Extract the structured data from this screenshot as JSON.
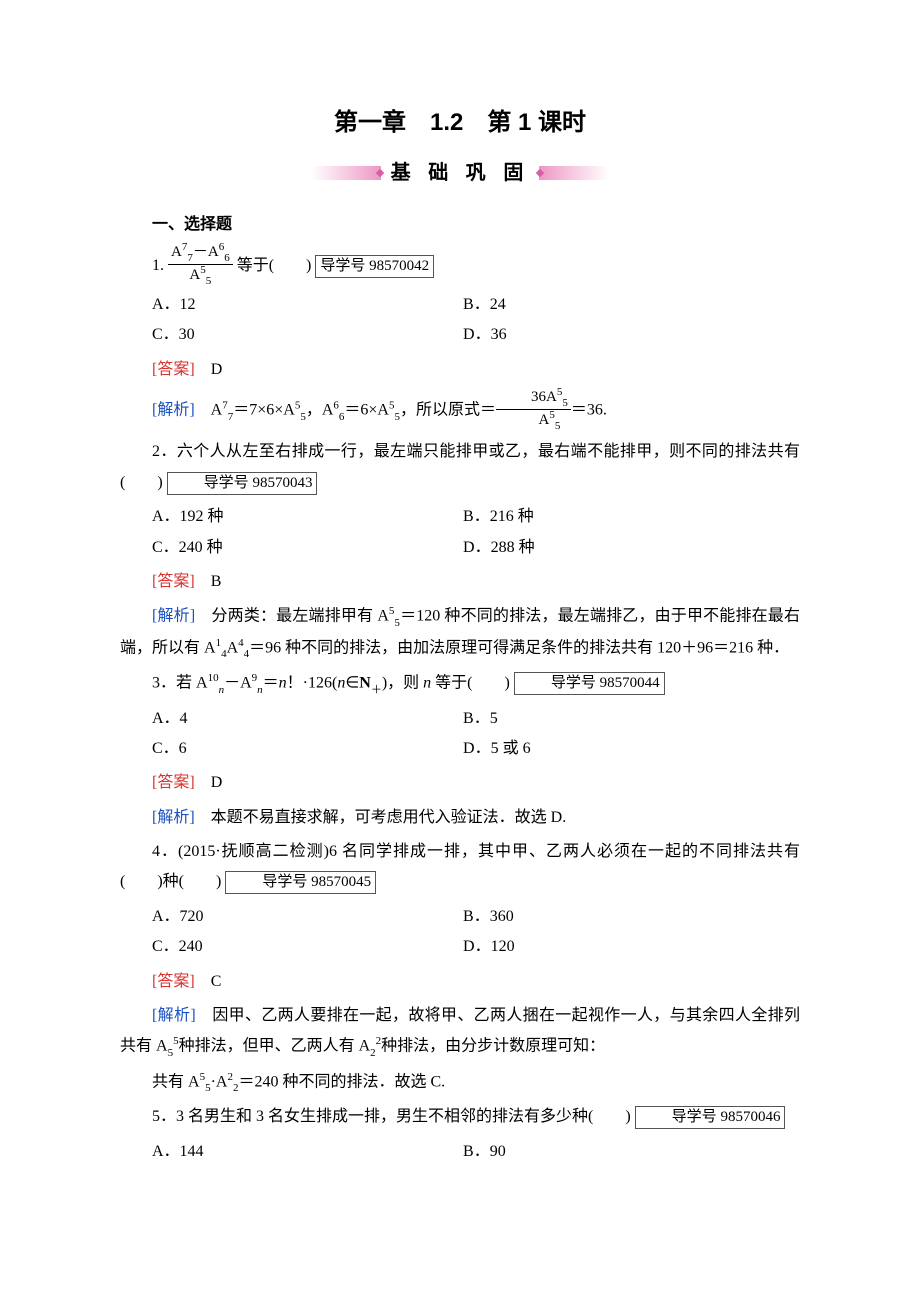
{
  "header": {
    "chapter_title": "第一章　1.2　第 1 课时",
    "banner_label": "基 础 巩 固",
    "banner_color": "#ec8cbe",
    "banner_diamond_color": "#d85fa5"
  },
  "section1_title": "一、选择题",
  "colors": {
    "answer_label": "#d6322f",
    "analysis_label": "#1a4fc2",
    "text": "#000000",
    "background": "#ffffff"
  },
  "labels": {
    "answer": "[答案]",
    "analysis": "[解析]",
    "guide_prefix": "导学号 "
  },
  "q1": {
    "num": "1.",
    "frac_num": "A₇⁷－A₆⁶",
    "frac_den": "A₅⁵",
    "tail": "等于(　　)",
    "guide": "98570042",
    "A": "A．12",
    "B": "B．24",
    "C": "C．30",
    "D": "D．36",
    "answer": "D",
    "analysis_pre": "[解析]　A₇⁷＝7×6×A₅⁵，A₆⁶＝6×A₅⁵，所以原式＝",
    "analysis_frac_num": "36A₅⁵",
    "analysis_frac_den": "A₅⁵",
    "analysis_post": "＝36."
  },
  "q2": {
    "stem_a": "2．六个人从左至右排成一行，最左端只能排甲或乙，最右端不能排甲，则不同的排法共有(　　)",
    "guide": "98570043",
    "A": "A．192 种",
    "B": "B．216 种",
    "C": "C．240 种",
    "D": "D．288 种",
    "answer": "B",
    "analysis": "[解析]　分两类：最左端排甲有 A₅⁵＝120 种不同的排法，最左端排乙，由于甲不能排在最右端，所以有 A₄¹A₄⁴＝96 种不同的排法，由加法原理可得满足条件的排法共有 120＋96＝216 种．"
  },
  "q3": {
    "stem": "3．若 A_n¹⁰－A_n⁹＝n！·126(n∈N₊)，则 n 等于(　　)",
    "guide": "98570044",
    "A": "A．4",
    "B": "B．5",
    "C": "C．6",
    "D": "D．5 或 6",
    "answer": "D",
    "analysis": "[解析]　本题不易直接求解，可考虑用代入验证法．故选 D."
  },
  "q4": {
    "stem_a": "4．(2015·抚顺高二检测)6 名同学排成一排，其中甲、乙两人必须在一起的不同排法共有(　　)种(　　)",
    "guide": "98570045",
    "A": "A．720",
    "B": "B．360",
    "C": "C．240",
    "D": "D．120",
    "answer": "C",
    "analysis_a": "[解析]　因甲、乙两人要排在一起，故将甲、乙两人捆在一起视作一人，与其余四人全排列共有 A₅⁵种排法，但甲、乙两人有 A₂²种排法，由分步计数原理可知：",
    "analysis_b": "共有 A₅⁵·A₂²＝240 种不同的排法．故选 C."
  },
  "q5": {
    "stem": "5．3 名男生和 3 名女生排成一排，男生不相邻的排法有多少种(　　)",
    "guide": "98570046",
    "A": "A．144",
    "B": "B．90"
  }
}
